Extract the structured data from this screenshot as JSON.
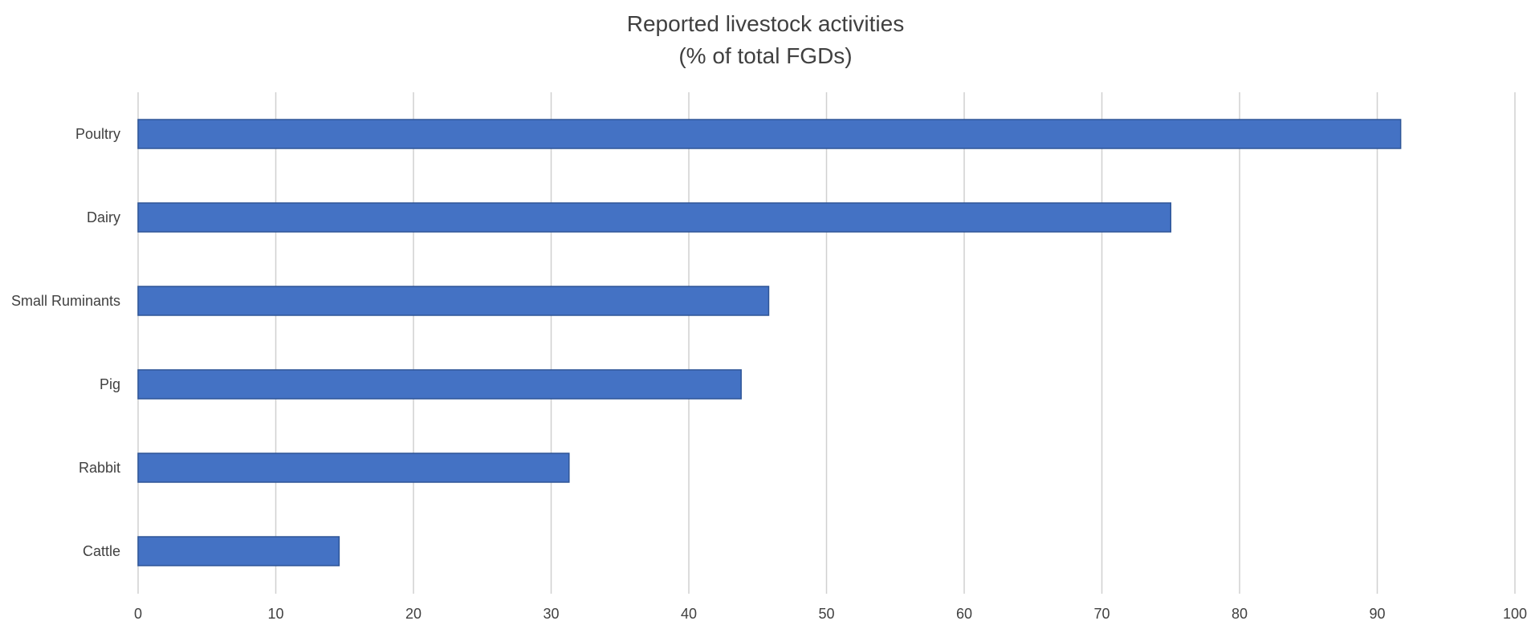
{
  "colors": {
    "bar_fill": "#4472c4",
    "bar_stroke": "#2e5597",
    "gridline": "#d0d0d0",
    "text": "#404040",
    "background": "#ffffff"
  },
  "chart_data": {
    "type": "bar",
    "orientation": "horizontal",
    "title": "Reported livestock activities",
    "subtitle": "(% of total FGDs)",
    "xlabel": "",
    "ylabel": "",
    "categories": [
      "Poultry",
      "Dairy",
      "Small Ruminants",
      "Pig",
      "Rabbit",
      "Cattle"
    ],
    "values": [
      91.7,
      75.0,
      45.8,
      43.8,
      31.3,
      14.6
    ],
    "xlim": [
      0,
      100
    ],
    "xticks": [
      0,
      10,
      20,
      30,
      40,
      50,
      60,
      70,
      80,
      90,
      100
    ],
    "grid": "vertical",
    "legend": "none"
  }
}
